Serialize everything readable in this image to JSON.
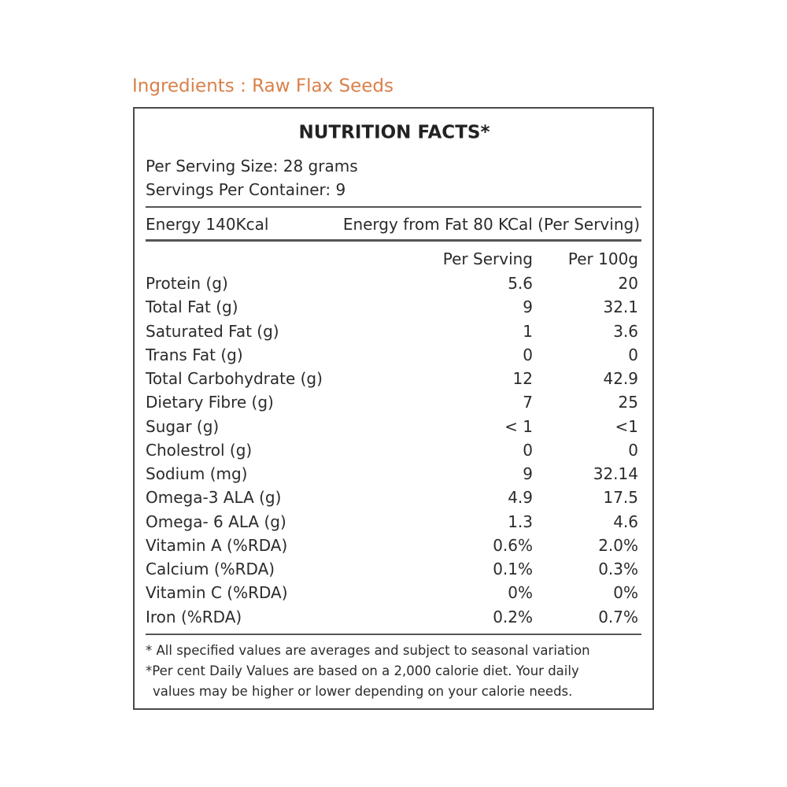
{
  "header": {
    "title": "Ingredients : Raw Flax Seeds"
  },
  "panel": {
    "title": "NUTRITION FACTS*",
    "serving": [
      "Per Serving Size: 28 grams",
      "Servings Per Container: 9"
    ],
    "energy": [
      "Energy 140Kcal",
      "Energy from Fat 80 KCal (Per Serving)"
    ],
    "table": {
      "columns": [
        "Per Serving",
        "Per 100g"
      ],
      "rows": [
        [
          "Protein (g)",
          "5.6",
          "20"
        ],
        [
          "Total Fat (g)",
          "9",
          "32.1"
        ],
        [
          "Saturated Fat (g)",
          "1",
          "3.6"
        ],
        [
          "Trans Fat (g)",
          "0",
          "0"
        ],
        [
          "Total Carbohydrate (g)",
          "12",
          "42.9"
        ],
        [
          "Dietary Fibre (g)",
          "7",
          "25"
        ],
        [
          "Sugar (g)",
          "< 1",
          "<1"
        ],
        [
          "Cholestrol (g)",
          "0",
          "0"
        ],
        [
          "Sodium (mg)",
          "9",
          "32.14"
        ],
        [
          "Omega-3 ALA (g)",
          "4.9",
          "17.5"
        ],
        [
          "Omega- 6 ALA (g)",
          "1.3",
          "4.6"
        ],
        [
          "Vitamin A (%RDA)",
          "0.6%",
          "2.0%"
        ],
        [
          "Calcium (%RDA)",
          "0.1%",
          "0.3%"
        ],
        [
          "Vitamin C (%RDA)",
          "0%",
          "0%"
        ],
        [
          "Iron (%RDA)",
          "0.2%",
          "0.7%"
        ]
      ]
    },
    "footnotes": [
      "* All specified values are averages and subject to seasonal variation",
      "*Per cent Daily Values are based on a 2,000 calorie diet. Your daily",
      "values may be higher or lower depending on your calorie needs."
    ]
  }
}
